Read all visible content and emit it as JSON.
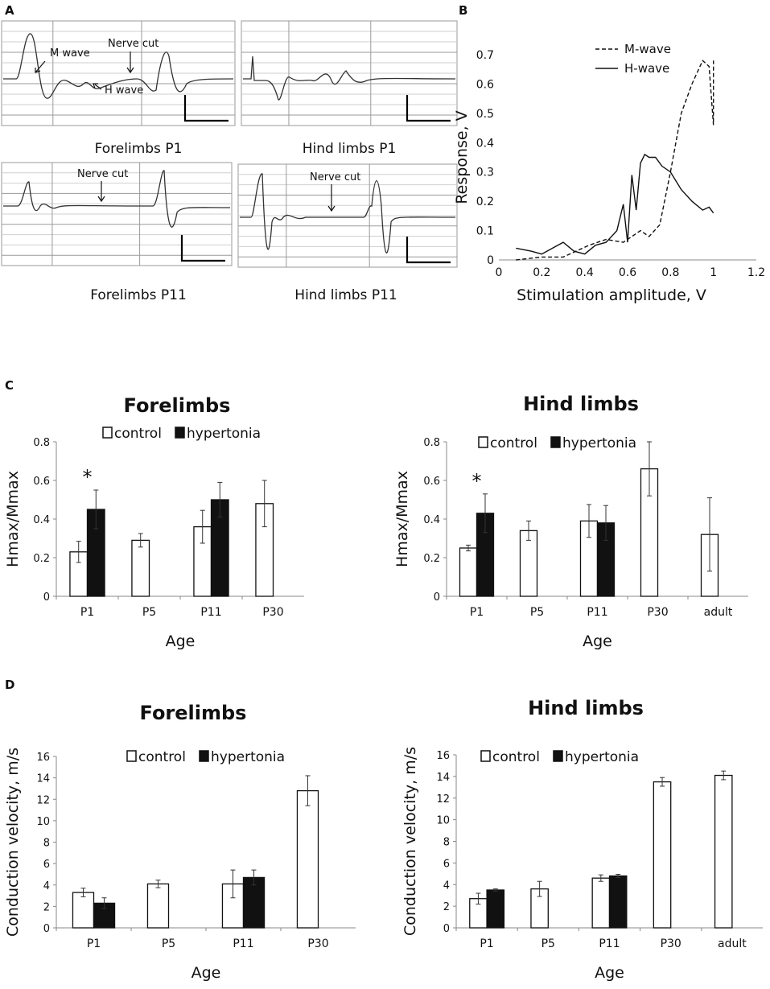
{
  "panels": {
    "A": "A",
    "B": "B",
    "C": "C",
    "D": "D"
  },
  "panelA": {
    "traces": [
      {
        "caption": "Forelimbs P1",
        "labels": [
          "M wave",
          "Nerve cut",
          "H wave"
        ]
      },
      {
        "caption": "Hind limbs P1",
        "labels": []
      },
      {
        "caption": "Forelimbs P11",
        "labels": [
          "Nerve cut"
        ]
      },
      {
        "caption": "Hind limbs P11",
        "labels": [
          "Nerve cut"
        ]
      }
    ]
  },
  "chart_data": [
    {
      "id": "B",
      "type": "line",
      "title": "",
      "xlabel": "Stimulation amplitude, V",
      "ylabel": "Response, V",
      "xlim": [
        0,
        1.2
      ],
      "ylim": [
        0,
        0.7
      ],
      "xticks": [
        "0",
        "0.2",
        "0.4",
        "0.6",
        "0.8",
        "1",
        "1.2"
      ],
      "yticks": [
        "0",
        "0.1",
        "0.2",
        "0.3",
        "0.4",
        "0.5",
        "0.6",
        "0.7"
      ],
      "legend": [
        "M-wave",
        "H-wave"
      ],
      "series": [
        {
          "name": "M-wave",
          "style": "dashed",
          "x": [
            0.08,
            0.2,
            0.3,
            0.42,
            0.5,
            0.58,
            0.62,
            0.66,
            0.7,
            0.75,
            0.8,
            0.85,
            0.9,
            0.95,
            0.98,
            1.0,
            1.0
          ],
          "y": [
            0.0,
            0.01,
            0.01,
            0.05,
            0.07,
            0.06,
            0.08,
            0.1,
            0.08,
            0.12,
            0.3,
            0.5,
            0.6,
            0.68,
            0.66,
            0.46,
            0.68
          ]
        },
        {
          "name": "H-wave",
          "style": "solid",
          "x": [
            0.08,
            0.15,
            0.2,
            0.25,
            0.3,
            0.35,
            0.4,
            0.45,
            0.5,
            0.55,
            0.58,
            0.6,
            0.62,
            0.64,
            0.66,
            0.68,
            0.7,
            0.73,
            0.76,
            0.8,
            0.85,
            0.9,
            0.95,
            0.98,
            1.0
          ],
          "y": [
            0.04,
            0.03,
            0.02,
            0.04,
            0.06,
            0.03,
            0.02,
            0.05,
            0.06,
            0.1,
            0.19,
            0.06,
            0.29,
            0.17,
            0.33,
            0.36,
            0.35,
            0.35,
            0.32,
            0.3,
            0.24,
            0.2,
            0.17,
            0.18,
            0.16
          ]
        }
      ]
    },
    {
      "id": "C-forelimbs",
      "type": "bar",
      "title": "Forelimbs",
      "xlabel": "Age",
      "ylabel": "Hmax/Mmax",
      "categories": [
        "P1",
        "P5",
        "P11",
        "P30"
      ],
      "ylim": [
        0,
        0.8
      ],
      "yticks": [
        "0",
        "0.2",
        "0.4",
        "0.6",
        "0.8"
      ],
      "legend": [
        "control",
        "hypertonia"
      ],
      "series": [
        {
          "name": "control",
          "values": [
            0.23,
            0.29,
            0.36,
            0.48
          ],
          "errors": [
            0.055,
            0.035,
            0.085,
            0.12
          ]
        },
        {
          "name": "hypertonia",
          "values": [
            0.45,
            null,
            0.5,
            null
          ],
          "errors": [
            0.1,
            null,
            0.09,
            null
          ]
        }
      ],
      "significance": [
        "*",
        "",
        "",
        ""
      ]
    },
    {
      "id": "C-hindlimbs",
      "type": "bar",
      "title": "Hind limbs",
      "xlabel": "Age",
      "ylabel": "Hmax/Mmax",
      "categories": [
        "P1",
        "P5",
        "P11",
        "P30",
        "adult"
      ],
      "ylim": [
        0,
        0.8
      ],
      "yticks": [
        "0",
        "0.2",
        "0.4",
        "0.6",
        "0.8"
      ],
      "legend": [
        "control",
        "hypertonia"
      ],
      "series": [
        {
          "name": "control",
          "values": [
            0.25,
            0.34,
            0.39,
            0.66,
            0.32
          ],
          "errors": [
            0.015,
            0.05,
            0.085,
            0.14,
            0.19
          ]
        },
        {
          "name": "hypertonia",
          "values": [
            0.43,
            null,
            0.38,
            null,
            null
          ],
          "errors": [
            0.1,
            null,
            0.09,
            null,
            null
          ]
        }
      ],
      "significance": [
        "*",
        "",
        "",
        "",
        ""
      ]
    },
    {
      "id": "D-forelimbs",
      "type": "bar",
      "title": "Forelimbs",
      "xlabel": "Age",
      "ylabel": "Conduction velocity, m/s",
      "categories": [
        "P1",
        "P5",
        "P11",
        "P30"
      ],
      "ylim": [
        0,
        16
      ],
      "yticks": [
        "0",
        "2",
        "4",
        "6",
        "8",
        "10",
        "12",
        "14",
        "16"
      ],
      "legend": [
        "control",
        "hypertonia"
      ],
      "series": [
        {
          "name": "control",
          "values": [
            3.3,
            4.1,
            4.1,
            12.8
          ],
          "errors": [
            0.4,
            0.35,
            1.3,
            1.4
          ]
        },
        {
          "name": "hypertonia",
          "values": [
            2.3,
            null,
            4.7,
            null
          ],
          "errors": [
            0.5,
            null,
            0.7,
            null
          ]
        }
      ],
      "significance": [
        "",
        "",
        "",
        ""
      ]
    },
    {
      "id": "D-hindlimbs",
      "type": "bar",
      "title": "Hind limbs",
      "xlabel": "Age",
      "ylabel": "Conduction velocity, m/s",
      "categories": [
        "P1",
        "P5",
        "P11",
        "P30",
        "adult"
      ],
      "ylim": [
        0,
        16
      ],
      "yticks": [
        "0",
        "2",
        "4",
        "6",
        "8",
        "10",
        "12",
        "14",
        "16"
      ],
      "legend": [
        "control",
        "hypertonia"
      ],
      "series": [
        {
          "name": "control",
          "values": [
            2.7,
            3.6,
            4.6,
            13.5,
            14.1
          ],
          "errors": [
            0.5,
            0.7,
            0.3,
            0.4,
            0.4
          ]
        },
        {
          "name": "hypertonia",
          "values": [
            3.5,
            null,
            4.8,
            null,
            null
          ],
          "errors": [
            0.1,
            null,
            0.15,
            null,
            null
          ]
        }
      ],
      "significance": [
        "",
        "",
        "",
        "",
        ""
      ]
    }
  ]
}
